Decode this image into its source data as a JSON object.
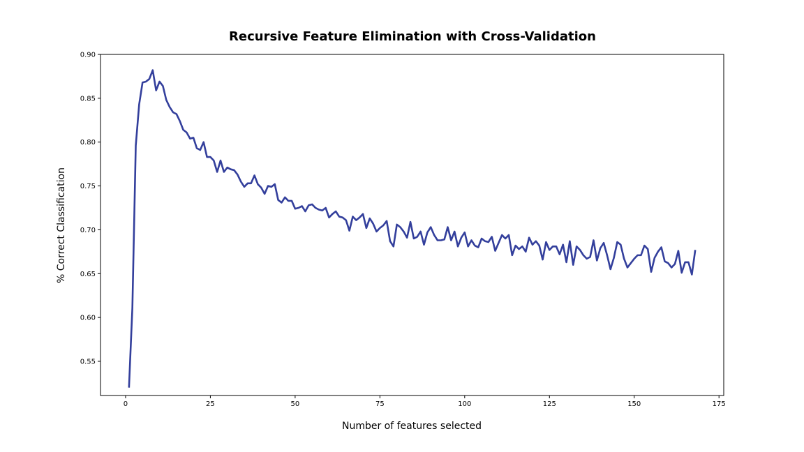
{
  "chart_data": {
    "type": "line",
    "title": "Recursive Feature Elimination with Cross-Validation",
    "xlabel": "Number of features selected",
    "ylabel": "% Correct Classification",
    "xlim": [
      -7.4,
      176.4
    ],
    "ylim": [
      0.511,
      0.9
    ],
    "xticks": [
      0,
      25,
      50,
      75,
      100,
      125,
      150,
      175
    ],
    "yticks": [
      0.55,
      0.6,
      0.65,
      0.7,
      0.75,
      0.8,
      0.85,
      0.9
    ],
    "ytick_labels": [
      "0.55",
      "0.60",
      "0.65",
      "0.70",
      "0.75",
      "0.80",
      "0.85",
      "0.90"
    ],
    "grid": false,
    "series": [
      {
        "color": "#333f9c",
        "x": [
          1,
          2,
          3,
          4,
          5,
          6,
          7,
          8,
          9,
          10,
          11,
          12,
          13,
          14,
          15,
          16,
          17,
          18,
          19,
          20,
          21,
          22,
          23,
          24,
          25,
          26,
          27,
          28,
          29,
          30,
          31,
          32,
          33,
          34,
          35,
          36,
          37,
          38,
          39,
          40,
          41,
          42,
          43,
          44,
          45,
          46,
          47,
          48,
          49,
          50,
          51,
          52,
          53,
          54,
          55,
          56,
          57,
          58,
          59,
          60,
          61,
          62,
          63,
          64,
          65,
          66,
          67,
          68,
          69,
          70,
          71,
          72,
          73,
          74,
          75,
          76,
          77,
          78,
          79,
          80,
          81,
          82,
          83,
          84,
          85,
          86,
          87,
          88,
          89,
          90,
          91,
          92,
          93,
          94,
          95,
          96,
          97,
          98,
          99,
          100,
          101,
          102,
          103,
          104,
          105,
          106,
          107,
          108,
          109,
          110,
          111,
          112,
          113,
          114,
          115,
          116,
          117,
          118,
          119,
          120,
          121,
          122,
          123,
          124,
          125,
          126,
          127,
          128,
          129,
          130,
          131,
          132,
          133,
          134,
          135,
          136,
          137,
          138,
          139,
          140,
          141,
          142,
          143,
          144,
          145,
          146,
          147,
          148,
          149,
          150,
          151,
          152,
          153,
          154,
          155,
          156,
          157,
          158,
          159,
          160,
          161,
          162,
          163,
          164,
          165,
          166,
          167,
          168
        ],
        "y": [
          0.52,
          0.611,
          0.796,
          0.843,
          0.868,
          0.869,
          0.872,
          0.882,
          0.859,
          0.869,
          0.864,
          0.848,
          0.84,
          0.834,
          0.832,
          0.824,
          0.814,
          0.811,
          0.804,
          0.805,
          0.793,
          0.791,
          0.8,
          0.783,
          0.783,
          0.779,
          0.766,
          0.779,
          0.766,
          0.771,
          0.769,
          0.768,
          0.763,
          0.755,
          0.749,
          0.753,
          0.753,
          0.762,
          0.752,
          0.748,
          0.741,
          0.75,
          0.749,
          0.752,
          0.734,
          0.731,
          0.737,
          0.733,
          0.733,
          0.724,
          0.725,
          0.727,
          0.721,
          0.728,
          0.729,
          0.725,
          0.723,
          0.722,
          0.725,
          0.714,
          0.718,
          0.721,
          0.715,
          0.714,
          0.711,
          0.699,
          0.715,
          0.711,
          0.714,
          0.718,
          0.702,
          0.713,
          0.707,
          0.698,
          0.702,
          0.705,
          0.71,
          0.687,
          0.681,
          0.706,
          0.703,
          0.698,
          0.691,
          0.709,
          0.69,
          0.692,
          0.698,
          0.683,
          0.697,
          0.703,
          0.694,
          0.688,
          0.688,
          0.689,
          0.703,
          0.688,
          0.698,
          0.681,
          0.691,
          0.697,
          0.681,
          0.688,
          0.682,
          0.68,
          0.69,
          0.687,
          0.686,
          0.692,
          0.676,
          0.685,
          0.694,
          0.69,
          0.694,
          0.671,
          0.682,
          0.678,
          0.681,
          0.675,
          0.691,
          0.683,
          0.687,
          0.682,
          0.666,
          0.686,
          0.677,
          0.681,
          0.681,
          0.672,
          0.683,
          0.663,
          0.687,
          0.66,
          0.681,
          0.677,
          0.671,
          0.667,
          0.669,
          0.688,
          0.665,
          0.679,
          0.685,
          0.671,
          0.655,
          0.668,
          0.686,
          0.683,
          0.667,
          0.657,
          0.662,
          0.667,
          0.671,
          0.671,
          0.682,
          0.678,
          0.652,
          0.668,
          0.675,
          0.68,
          0.664,
          0.662,
          0.657,
          0.661,
          0.676,
          0.651,
          0.663,
          0.663,
          0.649,
          0.677
        ]
      }
    ]
  }
}
